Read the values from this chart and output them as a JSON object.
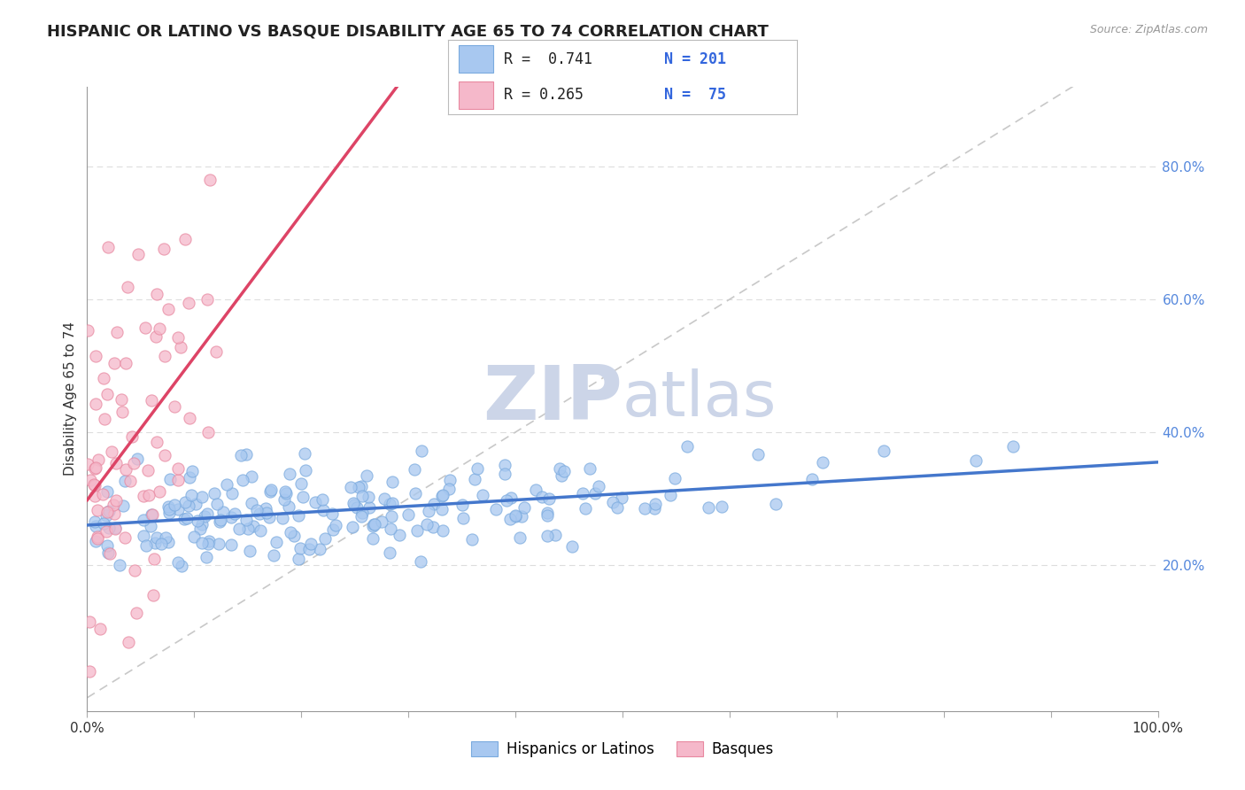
{
  "title": "HISPANIC OR LATINO VS BASQUE DISABILITY AGE 65 TO 74 CORRELATION CHART",
  "source_text": "Source: ZipAtlas.com",
  "ylabel": "Disability Age 65 to 74",
  "xlim": [
    0.0,
    1.0
  ],
  "ylim": [
    -0.02,
    0.92
  ],
  "ytick_vals": [
    0.2,
    0.4,
    0.6,
    0.8
  ],
  "ytick_labels": [
    "20.0%",
    "40.0%",
    "60.0%",
    "80.0%"
  ],
  "blue_color": "#a8c8f0",
  "pink_color": "#f5b8ca",
  "blue_edge": "#7aaade",
  "pink_edge": "#e888a0",
  "trend_blue": "#4477cc",
  "trend_pink": "#dd4466",
  "ref_line_color": "#c8c8c8",
  "watermark_color": "#ccd5e8",
  "background_color": "#ffffff",
  "title_fontsize": 13,
  "label_fontsize": 11,
  "tick_fontsize": 11,
  "ytick_color": "#5588dd",
  "blue_seed": 42,
  "pink_seed": 123,
  "n_blue": 201,
  "n_pink": 75,
  "blue_slope": 0.095,
  "blue_intercept": 0.255,
  "blue_noise": 0.038,
  "pink_slope": 2.8,
  "pink_intercept": 0.26,
  "pink_noise": 0.14
}
